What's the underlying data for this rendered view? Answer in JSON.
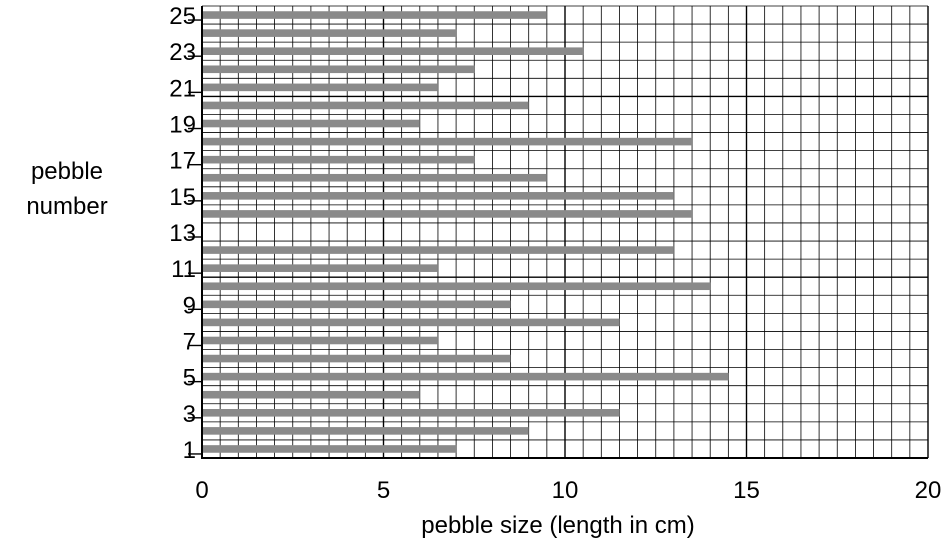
{
  "chart_data": {
    "type": "bar",
    "orientation": "horizontal",
    "xlabel": "pebble size (length in cm)",
    "ylabel": [
      "pebble",
      "number"
    ],
    "xlim": [
      0,
      20
    ],
    "ylim": [
      1,
      25
    ],
    "x_ticks": [
      "0",
      "5",
      "10",
      "15",
      "20"
    ],
    "y_ticks": [
      "1",
      "3",
      "5",
      "7",
      "9",
      "11",
      "13",
      "15",
      "17",
      "19",
      "21",
      "23",
      "25"
    ],
    "grid": true,
    "bar_color": "#8a8a8a",
    "categories": [
      1,
      2,
      3,
      4,
      5,
      6,
      7,
      8,
      9,
      10,
      11,
      12,
      13,
      14,
      15,
      16,
      17,
      18,
      19,
      20,
      21,
      22,
      23,
      24,
      25
    ],
    "values": [
      7,
      9,
      11.5,
      6,
      14.5,
      8.5,
      6.5,
      11.5,
      8.5,
      14,
      6.5,
      13,
      null,
      13.5,
      13,
      9.5,
      7.5,
      13.5,
      6,
      9,
      6.5,
      7.5,
      10.5,
      7,
      9.5
    ]
  }
}
